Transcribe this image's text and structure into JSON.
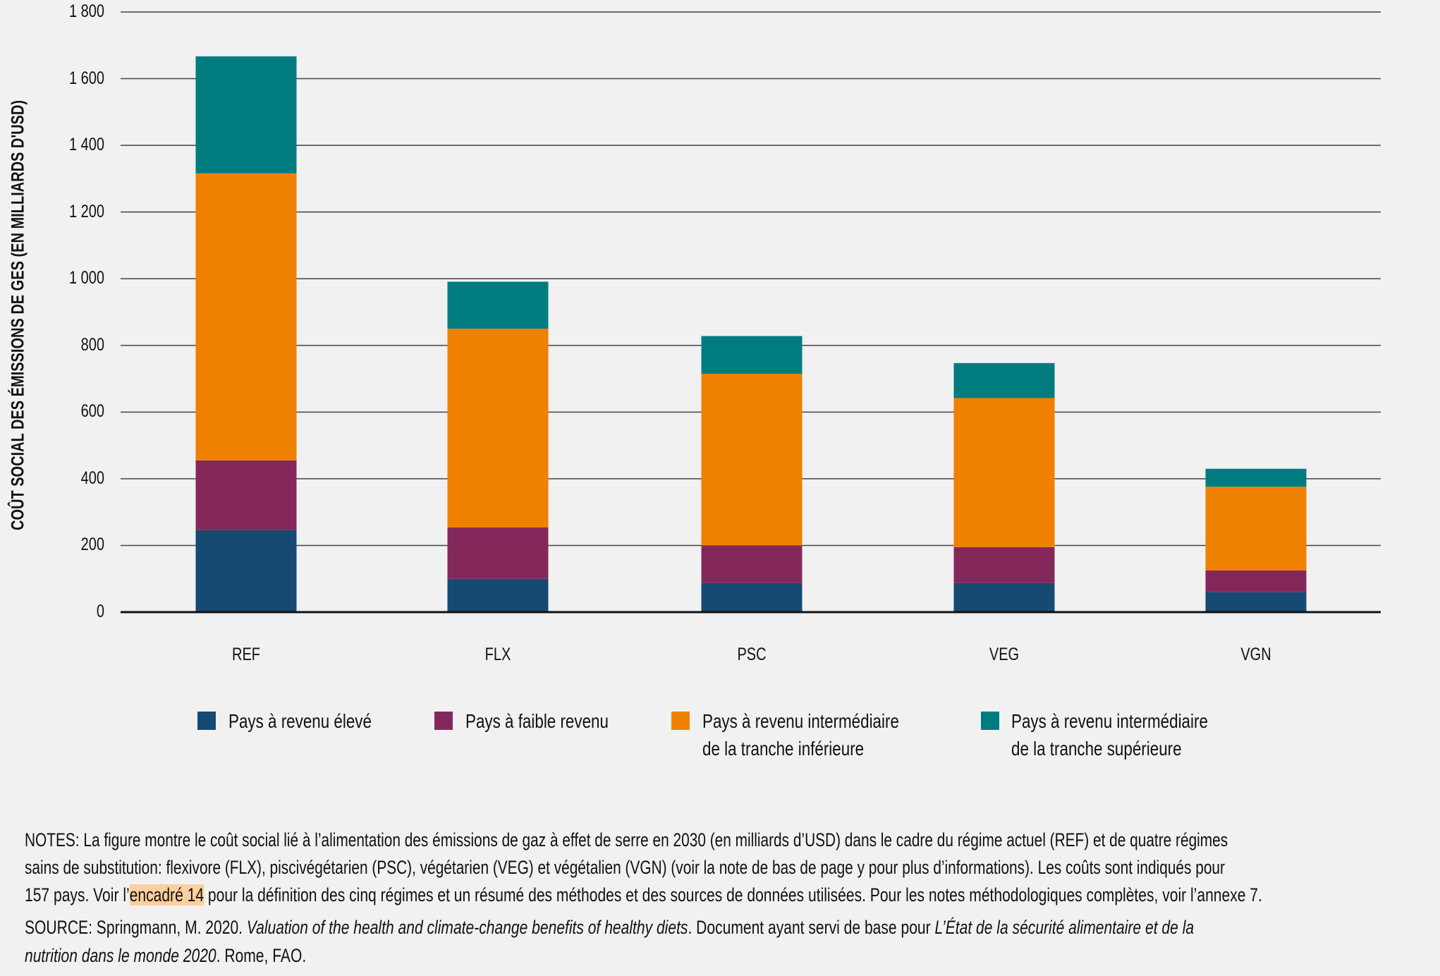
{
  "chart_data": {
    "type": "bar",
    "stacked": true,
    "ylabel": "COÛT SOCIAL DES ÉMISSIONS DE GES (EN MILLIARDS D'USD)",
    "xlabel": "",
    "ylim": [
      0,
      1800
    ],
    "yticks": [
      0,
      200,
      400,
      600,
      800,
      1000,
      1200,
      1400,
      1600,
      1800
    ],
    "ytick_labels": [
      "0",
      "200",
      "400",
      "600",
      "800",
      "1 000",
      "1 200",
      "1 400",
      "1 600",
      "1 800"
    ],
    "grid": true,
    "categories": [
      "REF",
      "FLX",
      "PSC",
      "VEG",
      "VGN"
    ],
    "series": [
      {
        "name": "Pays à revenu élevé",
        "color": "#164a73",
        "values": [
          246,
          100,
          87,
          87,
          60
        ]
      },
      {
        "name": "Pays à faible revenu",
        "color": "#84285b",
        "values": [
          209,
          154,
          113,
          108,
          65
        ]
      },
      {
        "name": "Pays à revenu intermédiaire de la tranche inférieure",
        "name_lines": [
          "Pays à revenu intermédiaire",
          "de la tranche inférieure"
        ],
        "color": "#f08000",
        "values": [
          861,
          596,
          515,
          447,
          251
        ]
      },
      {
        "name": "Pays à revenu intermédiaire de la tranche supérieure",
        "name_lines": [
          "Pays à revenu intermédiaire",
          "de la tranche supérieure"
        ],
        "color": "#007c80",
        "values": [
          351,
          141,
          113,
          105,
          54
        ]
      }
    ],
    "legend_position": "bottom"
  },
  "notes": {
    "line1": "NOTES: La figure montre le coût social lié à l’alimentation des émissions de gaz à effet de serre en 2030 (en milliards d’USD) dans le cadre du régime actuel (REF) et de quatre régimes",
    "line2": "sains de substitution: flexivore (FLX), piscivégétarien (PSC), végétarien (VEG) et végétalien (VGN) (voir la note de bas de page y pour plus d’informations). Les coûts sont indiqués pour",
    "line3_a": "157 pays. Voir l’",
    "line3_link": "encadré 14",
    "line3_b": " pour la définition des cinq régimes et un résumé des méthodes et des sources de données utilisées. Pour les notes méthodologiques complètes, voir l’annexe 7.",
    "source_a": "SOURCE: Springmann, M. 2020. ",
    "source_italic1": "Valuation of the health and climate-change benefits of healthy diets",
    "source_b": ". Document ayant servi de base pour ",
    "source_italic2": "L’État de la sécurité alimentaire et de la",
    "source_italic3": "nutrition dans le monde 2020",
    "source_c": ". Rome, FAO."
  }
}
